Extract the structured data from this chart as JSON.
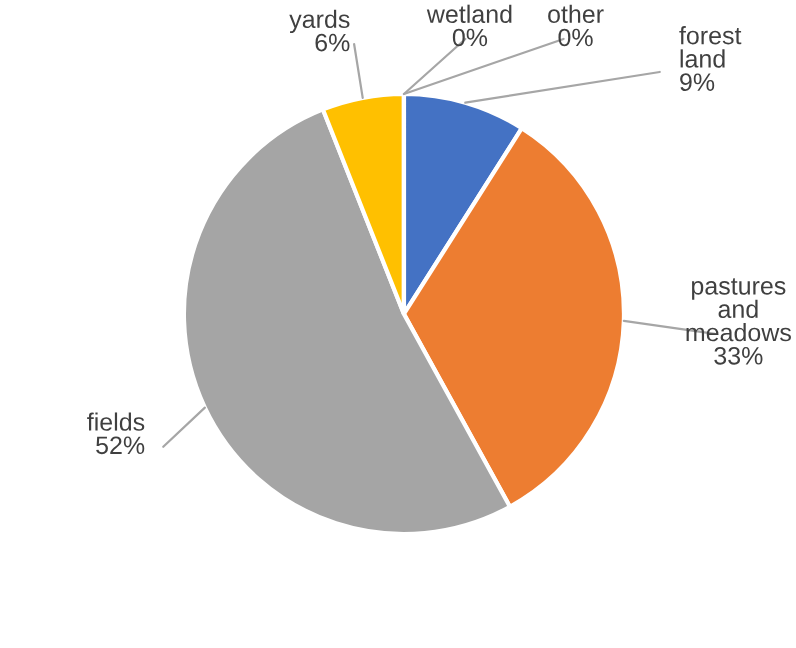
{
  "chart_data": {
    "type": "pie",
    "categories": [
      "forest land",
      "pastures and meadows",
      "fields",
      "yards",
      "wetland",
      "other"
    ],
    "values": [
      9,
      33,
      52,
      6,
      0,
      0
    ],
    "value_labels": [
      "9%",
      "33%",
      "52%",
      "6%",
      "0%",
      "0%"
    ],
    "colors": [
      "#4472c4",
      "#ed7d31",
      "#a5a5a5",
      "#ffc000",
      "#5b9bd5",
      "#70ad47"
    ],
    "legend": false
  }
}
